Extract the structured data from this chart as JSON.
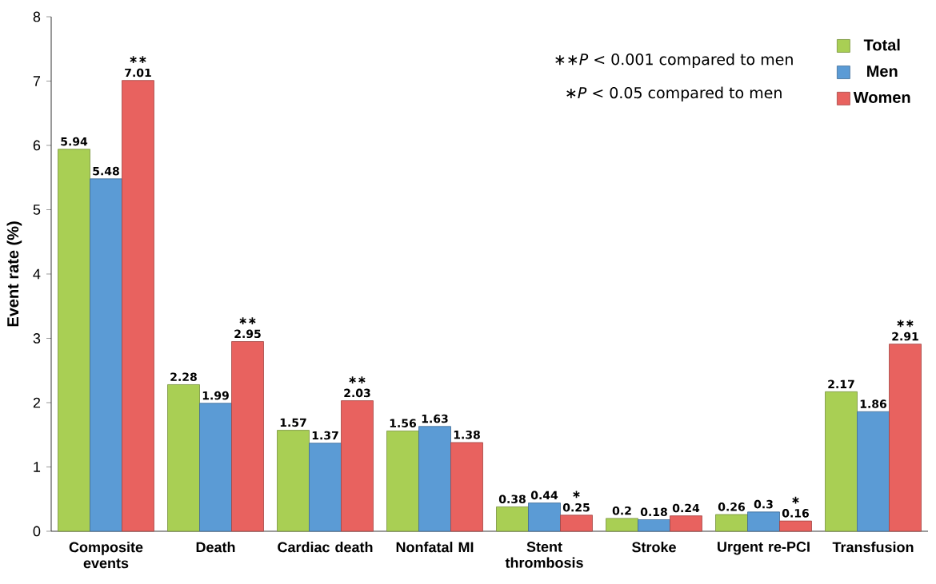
{
  "chart_data": {
    "type": "bar",
    "ylabel": "Event rate (%)",
    "categories": [
      "Composite events",
      "Death",
      "Cardiac death",
      "Nonfatal MI",
      "Stent thrombosis",
      "Stroke",
      "Urgent re-PCI",
      "Transfusion"
    ],
    "series": [
      {
        "name": "Total",
        "color": "#a9cf54",
        "values": [
          5.94,
          2.28,
          1.57,
          1.56,
          0.38,
          0.2,
          0.26,
          2.17
        ],
        "value_labels": [
          "5.94",
          "2.28",
          "1.57",
          "1.56",
          "0.38",
          "0.2",
          "0.26",
          "2.17"
        ]
      },
      {
        "name": "Men",
        "color": "#5b9bd5",
        "values": [
          5.48,
          1.99,
          1.37,
          1.63,
          0.44,
          0.18,
          0.3,
          1.86
        ],
        "value_labels": [
          "5.48",
          "1.99",
          "1.37",
          "1.63",
          "0.44",
          "0.18",
          "0.3",
          "1.86"
        ]
      },
      {
        "name": "Women",
        "color": "#e8625f",
        "values": [
          7.01,
          2.95,
          2.03,
          1.38,
          0.25,
          0.24,
          0.16,
          2.91
        ],
        "value_labels": [
          "∗∗ 7.01",
          "∗∗ 2.95",
          "∗∗ 2.03",
          "1.38",
          "∗ 0.25",
          "0.24",
          "∗ 0.16",
          "∗∗ 2.91"
        ]
      }
    ],
    "ylim": [
      0,
      8
    ],
    "yticks": [
      0,
      1,
      2,
      3,
      4,
      5,
      6,
      7,
      8
    ],
    "grid": false,
    "legend": "top right",
    "annotations": [
      "∗∗*P* < 0.001 compared to men",
      "∗*P* < 0.05 compared to men"
    ]
  }
}
